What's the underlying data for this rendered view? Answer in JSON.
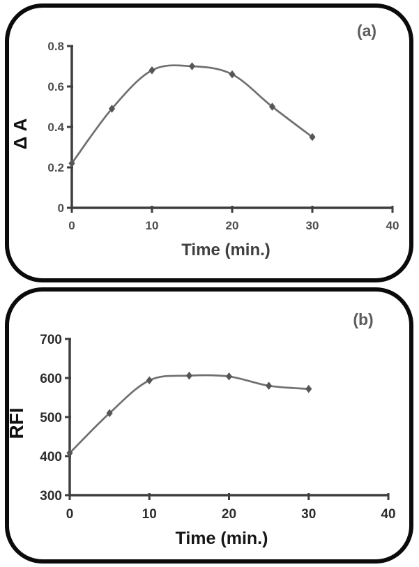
{
  "page": {
    "background": "#ffffff",
    "frame_border_color": "#0b0b0b"
  },
  "chart_data": [
    {
      "type": "line",
      "panel_label": "(a)",
      "xlabel": "Time (min.)",
      "ylabel": "Δ A",
      "x": [
        0,
        5,
        10,
        15,
        20,
        25,
        30
      ],
      "values": [
        0.22,
        0.49,
        0.68,
        0.7,
        0.66,
        0.5,
        0.35
      ],
      "xlim": [
        0,
        40
      ],
      "ylim": [
        0,
        0.8
      ],
      "xticks": [
        {
          "v": 0,
          "label": "0"
        },
        {
          "v": 10,
          "label": "10"
        },
        {
          "v": 20,
          "label": "20"
        },
        {
          "v": 30,
          "label": "30"
        },
        {
          "v": 40,
          "label": "40"
        }
      ],
      "yticks": [
        {
          "v": 0,
          "label": "0"
        },
        {
          "v": 0.2,
          "label": "0.2"
        },
        {
          "v": 0.4,
          "label": "0.4"
        },
        {
          "v": 0.6,
          "label": "0.6"
        },
        {
          "v": 0.8,
          "label": "0.8"
        }
      ],
      "marker": "diamond",
      "smooth": true,
      "grid": false,
      "line_color": "#6f6f6f",
      "marker_color": "#565656",
      "axis_color": "#3e3e3e"
    },
    {
      "type": "line",
      "panel_label": "(b)",
      "xlabel": "Time (min.)",
      "ylabel": "RFI",
      "x": [
        0,
        5,
        10,
        15,
        20,
        25,
        30
      ],
      "values": [
        408,
        510,
        594,
        606,
        604,
        580,
        572
      ],
      "xlim": [
        0,
        40
      ],
      "ylim": [
        300,
        700
      ],
      "xticks": [
        {
          "v": 0,
          "label": "0"
        },
        {
          "v": 10,
          "label": "10"
        },
        {
          "v": 20,
          "label": "20"
        },
        {
          "v": 30,
          "label": "30"
        },
        {
          "v": 40,
          "label": "40"
        }
      ],
      "yticks": [
        {
          "v": 300,
          "label": "300"
        },
        {
          "v": 400,
          "label": "400"
        },
        {
          "v": 500,
          "label": "500"
        },
        {
          "v": 600,
          "label": "600"
        },
        {
          "v": 700,
          "label": "700"
        }
      ],
      "marker": "diamond",
      "smooth": true,
      "grid": false,
      "line_color": "#6f6f6f",
      "marker_color": "#565656",
      "axis_color": "#3e3e3e"
    }
  ]
}
